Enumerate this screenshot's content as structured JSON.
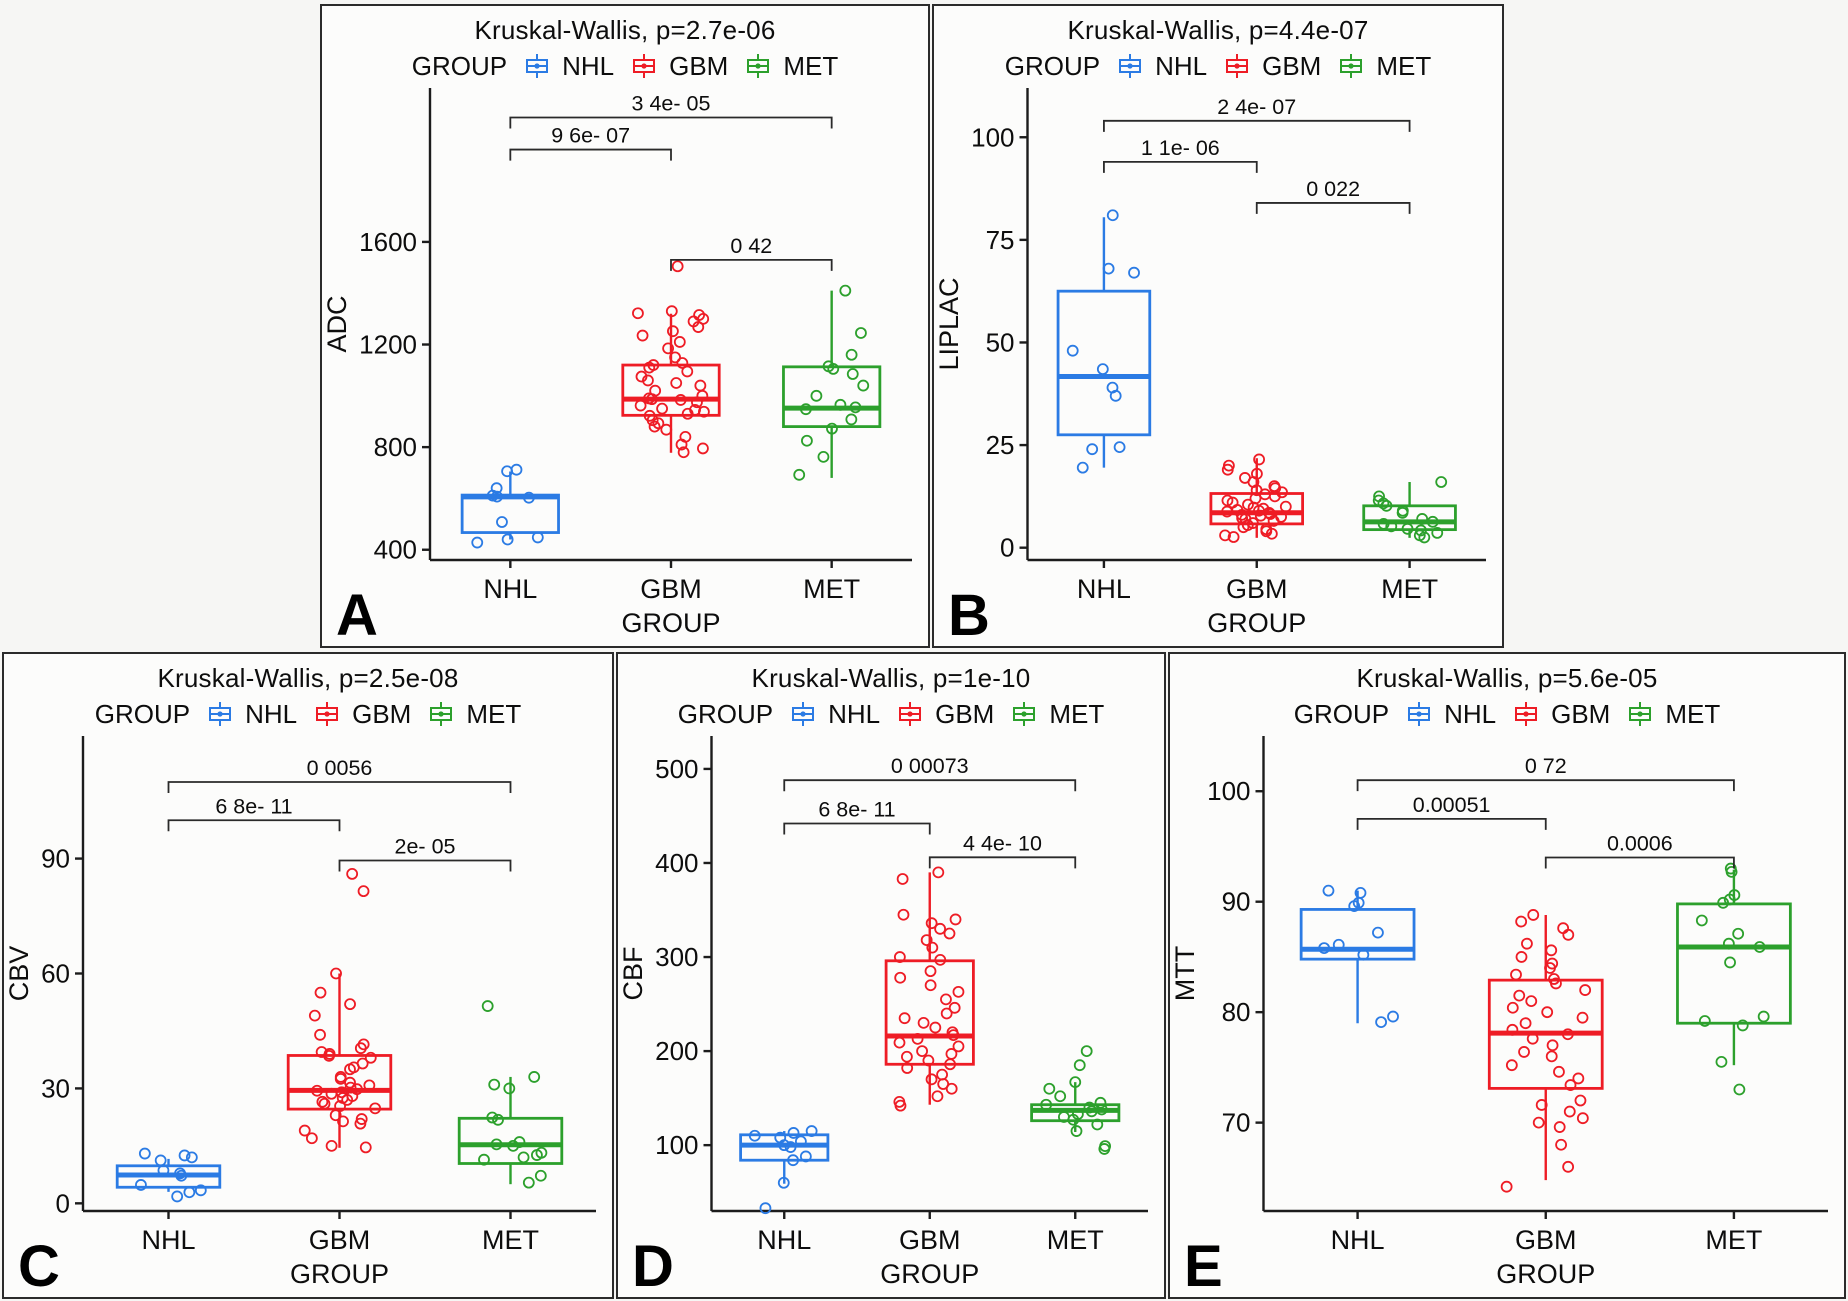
{
  "figure": {
    "background": "#f6f6f4",
    "panel_background": "#fcfcfb",
    "border_color": "#2b2b2b",
    "axis_color": "#1c1c1c",
    "legend": {
      "title": "GROUP",
      "entries": [
        {
          "label": "NHL",
          "color": "#2B7BE4"
        },
        {
          "label": "GBM",
          "color": "#EE1C25"
        },
        {
          "label": "MET",
          "color": "#2CA02C"
        }
      ]
    }
  },
  "chart_data": [
    {
      "panel_letter": "A",
      "type": "boxplot",
      "title": "Kruskal-Wallis, p=2.7e-06",
      "xlabel": "GROUP",
      "ylabel": "ADC",
      "categories": [
        "NHL",
        "GBM",
        "MET"
      ],
      "ylim": [
        360,
        2200
      ],
      "yticks": [
        400,
        800,
        1200,
        1600
      ],
      "series": [
        {
          "name": "NHL",
          "box": {
            "low": 440,
            "q1": 467,
            "med": 606,
            "q3": 613,
            "high": 705
          },
          "points": [
            712,
            706,
            640,
            611,
            607,
            603,
            508,
            448,
            440,
            428
          ]
        },
        {
          "name": "GBM",
          "box": {
            "low": 778,
            "q1": 924,
            "med": 987,
            "q3": 1120,
            "high": 1320
          },
          "points": [
            1505,
            1330,
            1322,
            1315,
            1300,
            1290,
            1268,
            1252,
            1235,
            1210,
            1185,
            1150,
            1128,
            1120,
            1110,
            1095,
            1075,
            1060,
            1050,
            1040,
            1020,
            1000,
            990,
            987,
            984,
            975,
            962,
            950,
            945,
            938,
            930,
            922,
            905,
            893,
            880,
            868,
            840,
            810,
            795,
            780
          ]
        },
        {
          "name": "MET",
          "box": {
            "low": 680,
            "q1": 880,
            "med": 952,
            "q3": 1113,
            "high": 1410
          },
          "points": [
            1410,
            1245,
            1160,
            1115,
            1105,
            1085,
            1040,
            1000,
            965,
            955,
            948,
            908,
            872,
            825,
            762,
            692
          ]
        }
      ],
      "comparisons": [
        {
          "a": 0,
          "b": 2,
          "label": "3 4e- 05",
          "y": 2085
        },
        {
          "a": 0,
          "b": 1,
          "label": "9 6e- 07",
          "y": 1960
        },
        {
          "a": 1,
          "b": 2,
          "label": "0 42",
          "y": 1530
        }
      ]
    },
    {
      "panel_letter": "B",
      "type": "boxplot",
      "title": "Kruskal-Wallis, p=4.4e-07",
      "xlabel": "GROUP",
      "ylabel": "LIPLAC",
      "categories": [
        "NHL",
        "GBM",
        "MET"
      ],
      "ylim": [
        -3,
        112
      ],
      "yticks": [
        0,
        25,
        50,
        75,
        100
      ],
      "series": [
        {
          "name": "NHL",
          "box": {
            "low": 19.5,
            "q1": 27.5,
            "med": 41.7,
            "q3": 62.5,
            "high": 80.5
          },
          "points": [
            81,
            68,
            67,
            48,
            43.5,
            39,
            37,
            24.5,
            24,
            19.5
          ]
        },
        {
          "name": "GBM",
          "box": {
            "low": 2.4,
            "q1": 5.8,
            "med": 8.5,
            "q3": 13.2,
            "high": 21.8
          },
          "points": [
            21.5,
            20,
            19,
            18,
            17,
            16,
            15,
            14.5,
            14,
            13.5,
            13,
            12.5,
            12,
            11.5,
            11,
            10.5,
            10,
            9.8,
            9.5,
            9.2,
            9,
            8.8,
            8.5,
            8.2,
            8,
            7.8,
            7.5,
            7.2,
            7,
            6.5,
            6,
            5.5,
            5,
            4.5,
            4,
            3.4,
            3,
            2.6
          ]
        },
        {
          "name": "MET",
          "box": {
            "low": 2.4,
            "q1": 4.4,
            "med": 6.3,
            "q3": 10.2,
            "high": 16
          },
          "points": [
            16,
            12.5,
            11.5,
            10.8,
            10.2,
            9,
            8.5,
            7,
            6.3,
            5.8,
            5.2,
            4.6,
            4.2,
            3.6,
            3,
            2.5
          ]
        }
      ],
      "comparisons": [
        {
          "a": 0,
          "b": 2,
          "label": "2 4e- 07",
          "y": 104
        },
        {
          "a": 0,
          "b": 1,
          "label": "1 1e- 06",
          "y": 94
        },
        {
          "a": 1,
          "b": 2,
          "label": "0 022",
          "y": 84
        }
      ]
    },
    {
      "panel_letter": "C",
      "type": "boxplot",
      "title": "Kruskal-Wallis, p=2.5e-08",
      "xlabel": "GROUP",
      "ylabel": "CBV",
      "categories": [
        "NHL",
        "GBM",
        "MET"
      ],
      "ylim": [
        -2,
        122
      ],
      "yticks": [
        0,
        30,
        60,
        90
      ],
      "series": [
        {
          "name": "NHL",
          "box": {
            "low": 3,
            "q1": 4.2,
            "med": 7.4,
            "q3": 9.8,
            "high": 11.6
          },
          "points": [
            13,
            12.5,
            12,
            11.2,
            8.6,
            7.8,
            7.2,
            4.8,
            3.4,
            2.9,
            1.8
          ]
        },
        {
          "name": "GBM",
          "box": {
            "low": 14.5,
            "q1": 24.6,
            "med": 29.5,
            "q3": 38.6,
            "high": 60
          },
          "points": [
            86,
            81.5,
            60,
            55,
            52,
            49,
            44,
            41.5,
            40.5,
            39.5,
            39,
            38.5,
            38,
            36.5,
            35.5,
            35,
            33,
            32.5,
            31.5,
            30.8,
            30.2,
            29.8,
            29.4,
            29,
            28.6,
            28,
            27.5,
            27,
            26.5,
            26,
            25.4,
            24.8,
            23,
            22,
            21.4,
            20.8,
            19,
            17,
            15,
            14.6
          ]
        },
        {
          "name": "MET",
          "box": {
            "low": 5,
            "q1": 10.4,
            "med": 15.3,
            "q3": 22.2,
            "high": 33
          },
          "points": [
            51.5,
            33,
            31,
            30,
            22.4,
            21.8,
            16,
            15.4,
            15,
            13.2,
            12.6,
            12,
            11.4,
            7.2,
            5.4
          ]
        }
      ],
      "comparisons": [
        {
          "a": 0,
          "b": 2,
          "label": "0 0056",
          "y": 110
        },
        {
          "a": 0,
          "b": 1,
          "label": "6 8e- 11",
          "y": 100
        },
        {
          "a": 1,
          "b": 2,
          "label": "2e- 05",
          "y": 89.5
        }
      ]
    },
    {
      "panel_letter": "D",
      "type": "boxplot",
      "title": "Kruskal-Wallis, p=1e-10",
      "xlabel": "GROUP",
      "ylabel": "CBF",
      "categories": [
        "NHL",
        "GBM",
        "MET"
      ],
      "ylim": [
        30,
        535
      ],
      "yticks": [
        100,
        200,
        300,
        400,
        500
      ],
      "series": [
        {
          "name": "NHL",
          "box": {
            "low": 59,
            "q1": 84,
            "med": 100,
            "q3": 111,
            "high": 115
          },
          "points": [
            115,
            113,
            110,
            108,
            104,
            100,
            98,
            88,
            84,
            60,
            33
          ]
        },
        {
          "name": "GBM",
          "box": {
            "low": 143,
            "q1": 186,
            "med": 216,
            "q3": 296,
            "high": 390
          },
          "points": [
            390,
            383,
            345,
            340,
            336,
            330,
            325,
            318,
            310,
            300,
            297,
            285,
            278,
            270,
            263,
            255,
            246,
            240,
            235,
            230,
            225,
            220,
            217,
            213,
            209,
            205,
            200,
            197,
            194,
            190,
            186,
            182,
            175,
            170,
            165,
            160,
            152,
            146,
            142
          ]
        },
        {
          "name": "MET",
          "box": {
            "low": 114,
            "q1": 126,
            "med": 137,
            "q3": 143,
            "high": 167
          },
          "points": [
            200,
            185,
            167,
            160,
            152,
            145,
            143,
            140,
            138,
            136,
            133,
            130,
            127,
            122,
            115,
            99,
            96
          ]
        }
      ],
      "comparisons": [
        {
          "a": 0,
          "b": 2,
          "label": "0 00073",
          "y": 488
        },
        {
          "a": 0,
          "b": 1,
          "label": "6 8e- 11",
          "y": 442
        },
        {
          "a": 1,
          "b": 2,
          "label": "4 4e- 10",
          "y": 406
        }
      ]
    },
    {
      "panel_letter": "E",
      "type": "boxplot",
      "title": "Kruskal-Wallis, p=5.6e-05",
      "xlabel": "GROUP",
      "ylabel": "MTT",
      "categories": [
        "NHL",
        "GBM",
        "MET"
      ],
      "ylim": [
        62,
        105
      ],
      "yticks": [
        70,
        80,
        90,
        100
      ],
      "series": [
        {
          "name": "NHL",
          "box": {
            "low": 79,
            "q1": 84.8,
            "med": 85.7,
            "q3": 89.3,
            "high": 91
          },
          "points": [
            91,
            90.8,
            89.9,
            89.6,
            87.2,
            86.1,
            85.8,
            85.2,
            79.6,
            79.1
          ]
        },
        {
          "name": "GBM",
          "box": {
            "low": 64.8,
            "q1": 73.1,
            "med": 78.1,
            "q3": 82.9,
            "high": 88.8
          },
          "points": [
            88.8,
            88.2,
            87.6,
            87,
            86.2,
            85.6,
            85,
            84.4,
            84,
            83.4,
            83,
            82.6,
            82,
            81.5,
            81,
            80.4,
            80,
            79.5,
            79,
            78.4,
            78,
            77.6,
            77,
            76.4,
            76,
            75.2,
            74.6,
            74,
            73.4,
            72,
            71.6,
            71,
            70.4,
            70,
            69.6,
            68,
            66,
            64.2
          ]
        },
        {
          "name": "MET",
          "box": {
            "low": 75.2,
            "q1": 79,
            "med": 85.9,
            "q3": 89.8,
            "high": 92.9
          },
          "points": [
            93,
            92.7,
            90.6,
            90.2,
            89.9,
            88.3,
            87.1,
            86.2,
            85.9,
            84.5,
            79.6,
            79.2,
            78.8,
            75.5,
            73
          ]
        }
      ],
      "comparisons": [
        {
          "a": 0,
          "b": 2,
          "label": "0 72",
          "y": 101
        },
        {
          "a": 0,
          "b": 1,
          "label": "0.00051",
          "y": 97.5
        },
        {
          "a": 1,
          "b": 2,
          "label": "0.0006",
          "y": 94
        }
      ]
    }
  ]
}
